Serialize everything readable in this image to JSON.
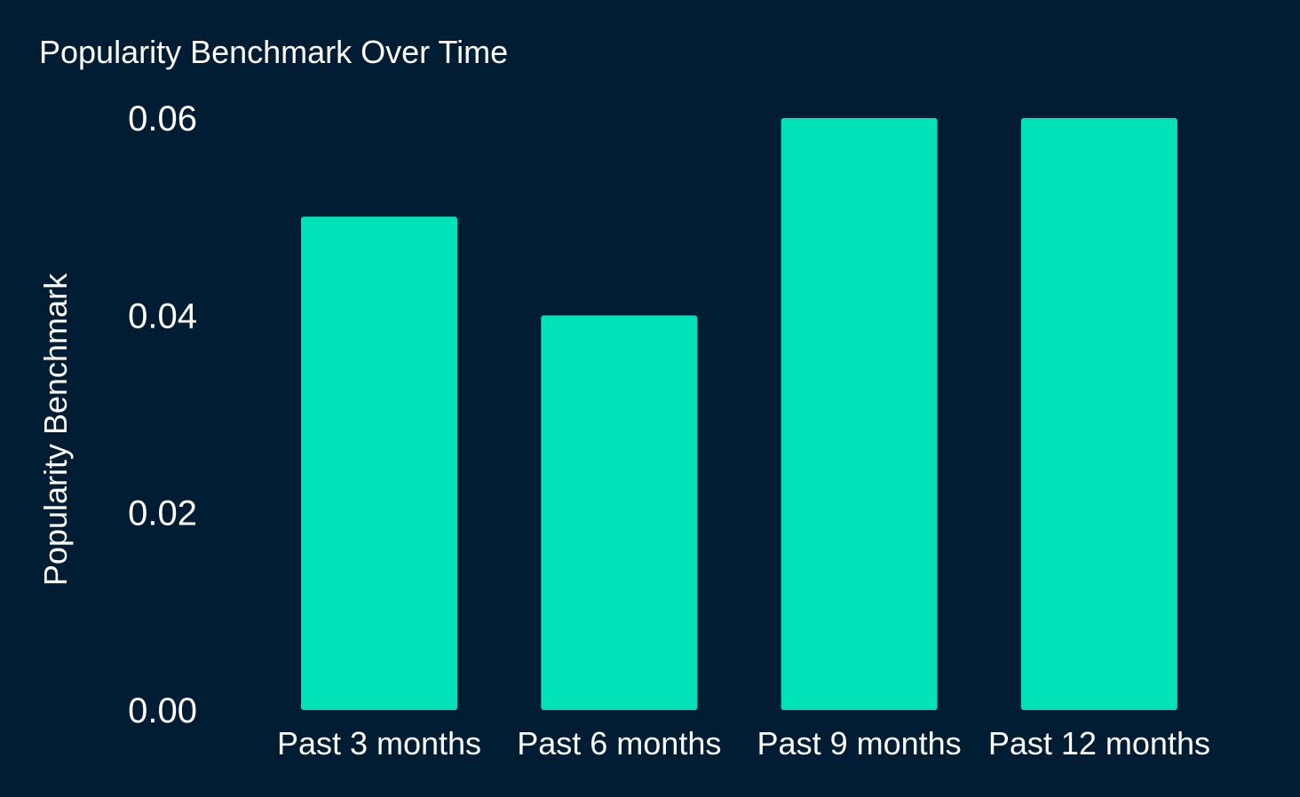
{
  "chart_data": {
    "type": "bar",
    "title": "Popularity Benchmark Over Time",
    "xlabel": "",
    "ylabel": "Popularity Benchmark",
    "categories": [
      "Past 3 months",
      "Past 6 months",
      "Past 9 months",
      "Past 12 months"
    ],
    "values": [
      0.05,
      0.04,
      0.06,
      0.06
    ],
    "ylim": [
      0,
      0.06
    ],
    "yticks": [
      "0.00",
      "0.02",
      "0.04",
      "0.06"
    ],
    "grid": false,
    "bar_color": "#00e2b7",
    "background_color": "#011d33",
    "text_color": "#ffffff"
  }
}
